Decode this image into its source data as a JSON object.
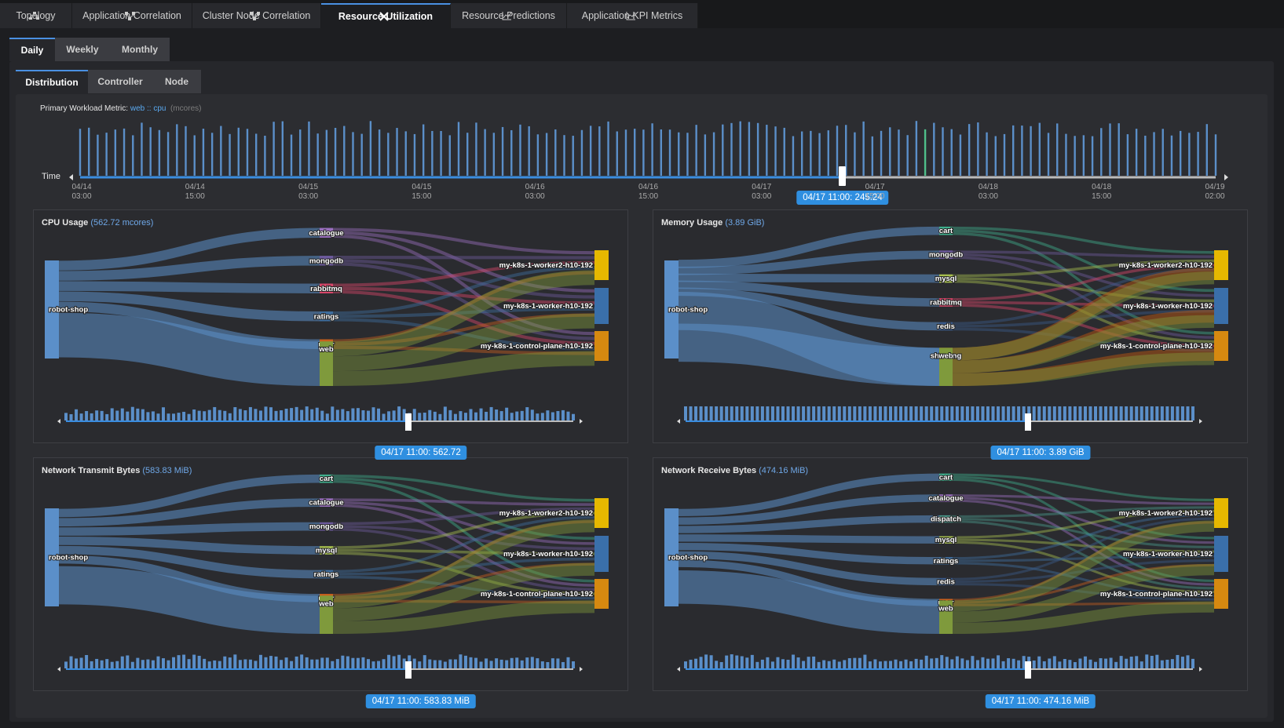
{
  "tabs": [
    {
      "label": "Topology",
      "icon": "topology-icon"
    },
    {
      "label": "Application Correlation",
      "icon": "correlation-icon"
    },
    {
      "label": "Cluster Node Correlation",
      "icon": "correlation-icon"
    },
    {
      "label": "Resource Utilization",
      "icon": "tools-icon"
    },
    {
      "label": "Resource Predictions",
      "icon": "line-chart-icon"
    },
    {
      "label": "Application KPI Metrics",
      "icon": "line-chart-icon"
    }
  ],
  "period_tabs": [
    "Daily",
    "Weekly",
    "Monthly"
  ],
  "view_tabs": [
    "Distribution",
    "Controller",
    "Node"
  ],
  "primary_metric": {
    "prefix": "Primary Workload Metric:",
    "workload": "web",
    "sep": "::",
    "metric": "cpu",
    "unit": "(mcores)"
  },
  "time_label": "Time",
  "timeline": {
    "ticks": [
      [
        "04/14",
        "03:00"
      ],
      [
        "04/14",
        "15:00"
      ],
      [
        "04/15",
        "03:00"
      ],
      [
        "04/15",
        "15:00"
      ],
      [
        "04/16",
        "03:00"
      ],
      [
        "04/16",
        "15:00"
      ],
      [
        "04/17",
        "03:00"
      ],
      [
        "04/17",
        "15:00"
      ],
      [
        "04/18",
        "03:00"
      ],
      [
        "04/18",
        "15:00"
      ],
      [
        "04/19",
        "02:00"
      ]
    ],
    "selected": "04/17 11:00: 245.24"
  },
  "colors": {
    "robot_shop": "#5b8fc9",
    "worker2": "#e6b800",
    "worker": "#3a6faa",
    "control_plane": "#d68910",
    "cart": "#3fae8c",
    "catalogue": "#9a6fbf",
    "mongodb": "#6c5a9c",
    "mysql": "#a7bf4f",
    "rabbitmq": "#d9476b",
    "ratings": "#3f6fa0",
    "redis": "#3a5a8a",
    "shipping": "#c85a0e",
    "user": "#c7601e",
    "web": "#7f9a3c",
    "dispatch": "#4a9a8c"
  },
  "panels": {
    "cpu": {
      "title": "CPU Usage",
      "value": "(562.72 mcores)",
      "badge": "04/17 11:00: 562.72",
      "source": "robot-shop",
      "services": [
        "catalogue",
        "mongodb",
        "rabbitmq",
        "ratings",
        "user",
        "web"
      ],
      "nodes": [
        "my-k8s-1-worker2-h10-192",
        "my-k8s-1-worker-h10-192",
        "my-k8s-1-control-plane-h10-192"
      ]
    },
    "memory": {
      "title": "Memory Usage",
      "value": "(3.89 GiB)",
      "badge": "04/17 11:00: 3.89 GiB",
      "source": "robot-shop",
      "services": [
        "cart",
        "mongodb",
        "mysql",
        "rabbitmq",
        "redis",
        "shipping",
        "web"
      ],
      "nodes": [
        "my-k8s-1-worker2-h10-192",
        "my-k8s-1-worker-h10-192",
        "my-k8s-1-control-plane-h10-192"
      ]
    },
    "tx": {
      "title": "Network Transmit Bytes",
      "value": "(583.83 MiB)",
      "badge": "04/17 11:00: 583.83 MiB",
      "source": "robot-shop",
      "services": [
        "cart",
        "catalogue",
        "mongodb",
        "mysql",
        "ratings",
        "user",
        "web"
      ],
      "nodes": [
        "my-k8s-1-worker2-h10-192",
        "my-k8s-1-worker-h10-192",
        "my-k8s-1-control-plane-h10-192"
      ]
    },
    "rx": {
      "title": "Network Receive Bytes",
      "value": "(474.16 MiB)",
      "badge": "04/17 11:00: 474.16 MiB",
      "source": "robot-shop",
      "services": [
        "cart",
        "catalogue",
        "dispatch",
        "mysql",
        "ratings",
        "redis",
        "user",
        "web"
      ],
      "nodes": [
        "my-k8s-1-worker2-h10-192",
        "my-k8s-1-worker-h10-192",
        "my-k8s-1-control-plane-h10-192"
      ]
    }
  }
}
